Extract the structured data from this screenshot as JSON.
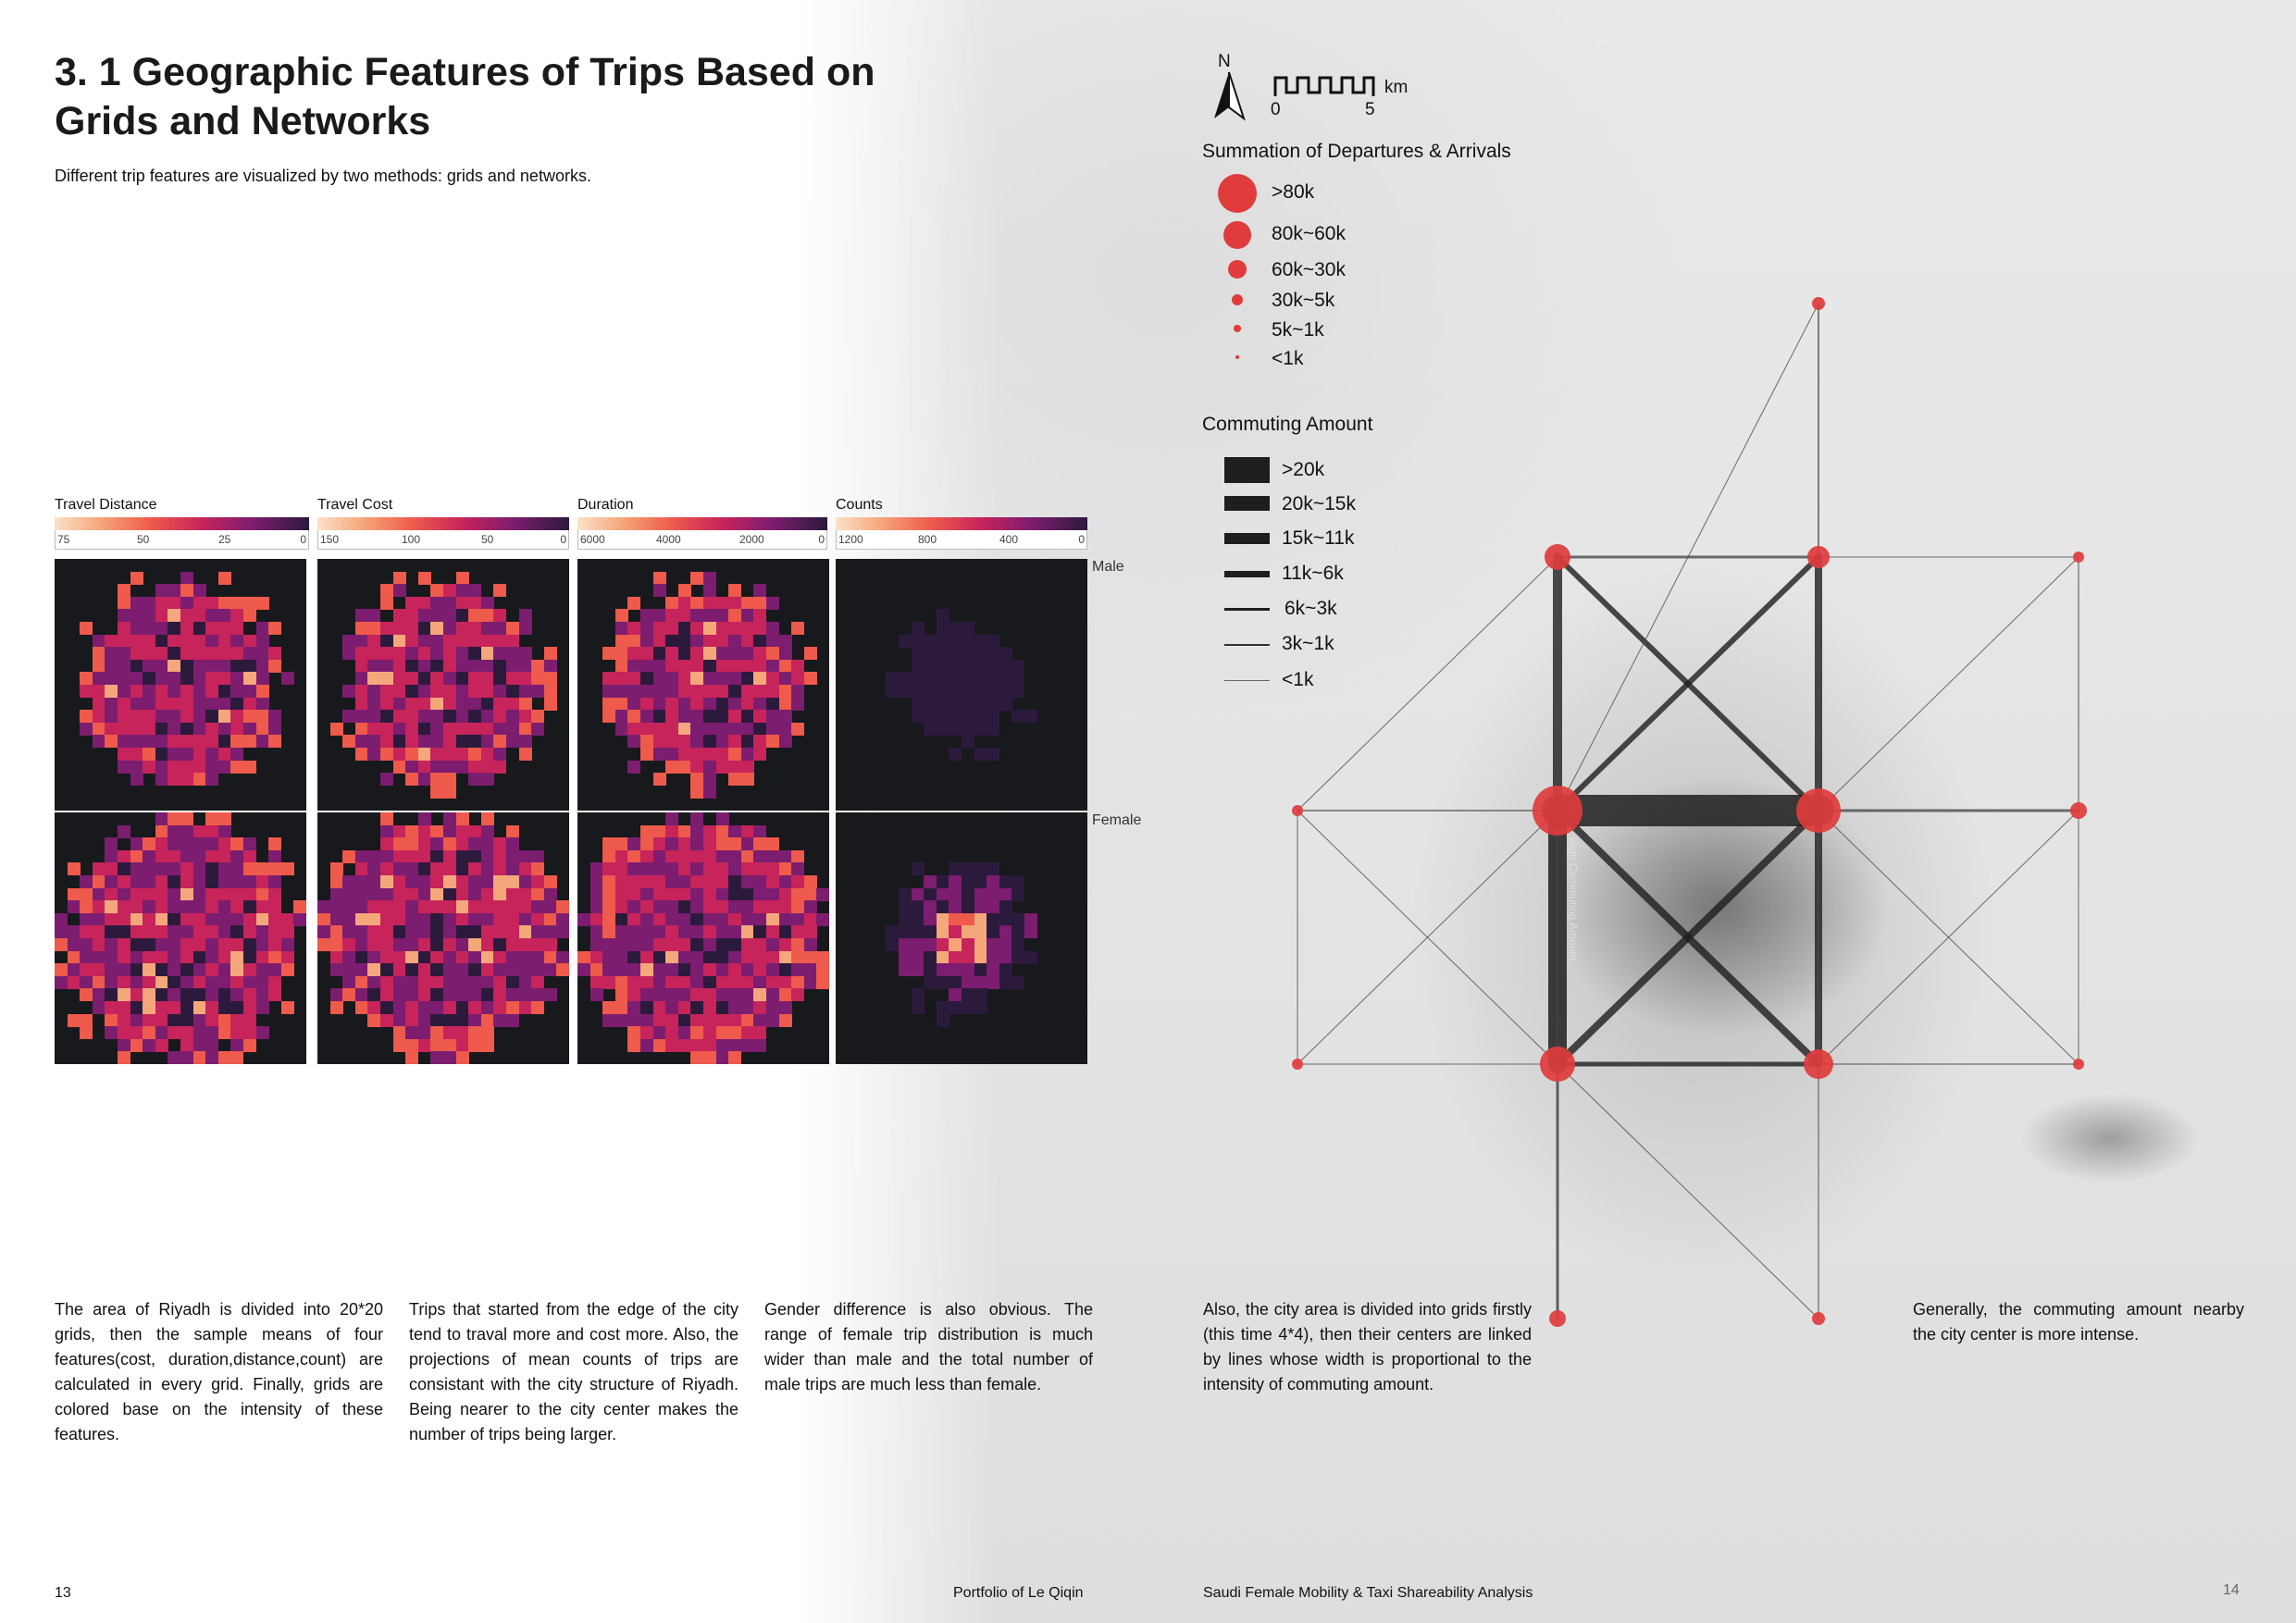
{
  "page": {
    "title": "3. 1 Geographic Features of Trips Based on Grids and Networks",
    "subtitle": "Different trip features are visualized by two methods: grids and networks.",
    "page_left": "13",
    "page_right": "14",
    "footer_left": "Portfolio of Le Qiqin",
    "footer_right": "Saudi Female Mobility & Taxi Shareability Analysis"
  },
  "grids": {
    "row_labels": [
      "Male",
      "Female"
    ],
    "colorbars": [
      {
        "title": "Travel Distance",
        "ticks": [
          "75",
          "50",
          "25",
          "0"
        ]
      },
      {
        "title": "Travel Cost",
        "ticks": [
          "150",
          "100",
          "50",
          "0"
        ]
      },
      {
        "title": "Duration",
        "ticks": [
          "6000",
          "4000",
          "2000",
          "0"
        ]
      },
      {
        "title": "Counts",
        "ticks": [
          "1200",
          "800",
          "400",
          "0"
        ]
      }
    ],
    "resolution": "20*20",
    "colormap": [
      "#fbe1c8",
      "#f5a77c",
      "#ee5a4b",
      "#c6245b",
      "#7c1d6f",
      "#2c1a3c",
      "#17191c"
    ]
  },
  "text_blocks": [
    "The area of Riyadh is divided into 20*20 grids, then the sample means of four features(cost, duration,distance,count) are calculated in every grid. Finally, grids are colored base on the intensity of these features.",
    "Trips that started from the edge of the city tend to traval more and cost more. Also, the projections of mean counts of trips are consistant with the city structure of Riyadh. Being nearer to the city center makes the number of trips being larger.",
    "Gender difference is also obvious. The range of female trip distribution is much wider than male and the total number of male trips are much less than female.",
    "Also, the city area is divided into grids firstly (this time 4*4), then their centers are linked by lines whose width is proportional to the intensity of commuting amount.",
    "Generally, the commuting amount nearby the city center is more intense."
  ],
  "map": {
    "north_label": "N",
    "scale_unit": "km",
    "scale_ticks": [
      "0",
      "5"
    ],
    "node_color": "#e03c3c",
    "line_color": "#1e1e1e",
    "vertical_label": "High Commuting Amount",
    "legend_nodes": {
      "title": "Summation of Departures & Arrivals",
      "items": [
        ">80k",
        "80k~60k",
        "60k~30k",
        "30k~5k",
        "5k~1k",
        "<1k"
      ]
    },
    "legend_lines": {
      "title": "Commuting Amount",
      "items": [
        ">20k",
        "20k~15k",
        "15k~11k",
        "11k~6k",
        "6k~3k",
        "3k~1k",
        "<1k"
      ]
    }
  }
}
